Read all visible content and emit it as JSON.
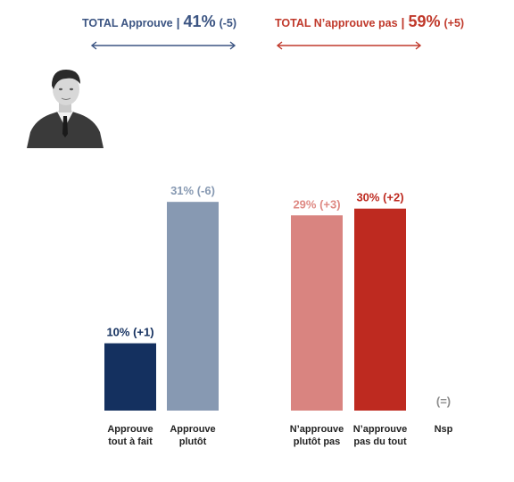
{
  "summary": {
    "approve": {
      "label": "TOTAL Approuve",
      "separator": "|",
      "pct": "41%",
      "change": "(-5)",
      "color": "#3b5482"
    },
    "disapprove": {
      "label": "TOTAL N’approuve pas",
      "separator": "|",
      "pct": "59%",
      "change": "(+5)",
      "color": "#c0392b"
    }
  },
  "chart_data": {
    "type": "bar",
    "ylim": [
      0,
      35
    ],
    "grid": false,
    "categories": [
      {
        "lines": [
          "Approuve",
          "tout à fait"
        ],
        "value": 10,
        "label": "10% (+1)",
        "color": "#14305f",
        "labelColor": "#14305f"
      },
      {
        "lines": [
          "Approuve",
          "plutôt"
        ],
        "value": 31,
        "label": "31% (-6)",
        "color": "#8799b2",
        "labelColor": "#8799b2"
      },
      {
        "lines": [
          "N’approuve",
          "plutôt pas"
        ],
        "value": 29,
        "label": "29% (+3)",
        "color": "#d98480",
        "labelColor": "#df8a84"
      },
      {
        "lines": [
          "N’approuve",
          "pas du tout"
        ],
        "value": 30,
        "label": "30% (+2)",
        "color": "#be2a20",
        "labelColor": "#be2a20"
      },
      {
        "lines": [
          "Nsp"
        ],
        "value": 0,
        "label": "(=)",
        "color": "#8c8c8c",
        "labelColor": "#8c8c8c"
      }
    ]
  }
}
